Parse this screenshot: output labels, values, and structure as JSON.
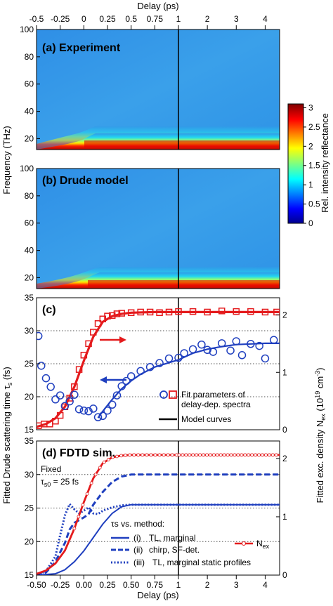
{
  "figure": {
    "top_xlabel": "Delay (ps)",
    "bottom_xlabel": "Delay (ps)",
    "freq_ylabel": "Frequency (THz)",
    "left_ylabel": "Fitted Drude scattering time τ",
    "left_ylabel_sub": "s",
    "left_ylabel_unit": " (fs)",
    "right_ylabel_pre": "Fitted exc. density N",
    "right_ylabel_sub": "ex",
    "right_ylabel_unit": " (10",
    "right_ylabel_exp": "19",
    "right_ylabel_end": " cm",
    "right_ylabel_exp2": "-3",
    "right_ylabel_close": ")",
    "colorbar_label": "Rel. intensity reflectance",
    "colors": {
      "red": "#e41a1c",
      "blue": "#1f3fbf",
      "line": "#000000"
    }
  },
  "chart_data": [
    {
      "type": "heatmap",
      "panel_label": "(a) Experiment",
      "xlabel": "Delay (ps)",
      "ylabel": "Frequency (THz)",
      "xticks": [
        "-0.5",
        "-0.25",
        "0",
        "0.25",
        "0.5",
        "0.75",
        "1",
        "2",
        "3",
        "4"
      ],
      "yticks": [
        "20",
        "40",
        "60",
        "80",
        "100"
      ],
      "ylim": [
        12,
        100
      ],
      "colorbar": {
        "label": "Rel. intensity reflectance",
        "ticks": [
          "0",
          "0.5",
          "1",
          "1.5",
          "2",
          "2.5",
          "3"
        ],
        "range": [
          0,
          3.1
        ]
      }
    },
    {
      "type": "heatmap",
      "panel_label": "(b) Drude model",
      "xlabel": "Delay (ps)",
      "ylabel": "Frequency (THz)",
      "yticks": [
        "20",
        "40",
        "60",
        "80",
        "100"
      ],
      "ylim": [
        12,
        100
      ]
    },
    {
      "type": "scatter",
      "panel_label": "(c)",
      "left_yticks": [
        "15",
        "20",
        "25",
        "30",
        "35"
      ],
      "left_ylim": [
        15,
        35
      ],
      "right_yticks": [
        "0",
        "1",
        "2"
      ],
      "right_ylim": [
        0,
        2.3
      ],
      "legend": [
        "Fit parameters of",
        "delay-dep. spectra",
        "Model curves"
      ],
      "series": [
        {
          "name": "N_ex fit",
          "axis": "right",
          "x": [
            -0.48,
            -0.42,
            -0.36,
            -0.3,
            -0.25,
            -0.2,
            -0.15,
            -0.1,
            -0.05,
            0,
            0.05,
            0.1,
            0.15,
            0.2,
            0.25,
            0.3,
            0.35,
            0.4,
            0.5,
            0.6,
            0.7,
            0.8,
            0.9,
            1.0,
            1.5,
            2.0,
            2.5,
            3.0,
            3.5,
            4.0,
            4.4
          ],
          "values": [
            0.07,
            0.1,
            0.1,
            0.15,
            0.25,
            0.4,
            0.55,
            0.75,
            1.05,
            1.3,
            1.5,
            1.7,
            1.85,
            1.93,
            1.98,
            1.99,
            2.02,
            2.03,
            2.04,
            2.05,
            2.05,
            2.04,
            2.05,
            2.06,
            2.06,
            2.05,
            2.07,
            2.06,
            2.06,
            2.05,
            2.05
          ]
        },
        {
          "name": "tau_s fit",
          "axis": "left",
          "x": [
            -0.48,
            -0.45,
            -0.4,
            -0.35,
            -0.3,
            -0.25,
            -0.2,
            -0.15,
            -0.1,
            -0.05,
            0,
            0.05,
            0.1,
            0.15,
            0.2,
            0.25,
            0.3,
            0.35,
            0.4,
            0.45,
            0.5,
            0.6,
            0.7,
            0.8,
            0.9,
            1.0,
            1.2,
            1.5,
            1.8,
            2.0,
            2.2,
            2.5,
            2.8,
            3.0,
            3.2,
            3.5,
            3.8,
            4.0,
            4.3
          ],
          "values": [
            29.2,
            24.7,
            22.8,
            21.5,
            19.6,
            20.2,
            18.6,
            19.3,
            20.3,
            18.1,
            17.9,
            17.8,
            18.2,
            16.9,
            17.1,
            17.9,
            18.8,
            20.2,
            21.6,
            22.4,
            23.1,
            23.9,
            24.5,
            25.1,
            25.8,
            25.9,
            26.6,
            27.2,
            27.9,
            27.1,
            26.8,
            28.1,
            27.0,
            28.4,
            26.3,
            28.0,
            27.7,
            25.8,
            28.6
          ]
        },
        {
          "name": "N_ex model",
          "axis": "right",
          "x": [
            -0.5,
            -0.4,
            -0.3,
            -0.2,
            -0.1,
            0,
            0.1,
            0.2,
            0.3,
            0.4,
            0.5,
            0.75,
            1,
            2,
            3,
            4,
            4.5
          ],
          "values": [
            0.05,
            0.1,
            0.2,
            0.4,
            0.75,
            1.2,
            1.62,
            1.88,
            1.98,
            2.02,
            2.04,
            2.05,
            2.05,
            2.05,
            2.05,
            2.05,
            2.05
          ]
        },
        {
          "name": "tau_s model",
          "axis": "left",
          "x": [
            0.15,
            0.2,
            0.3,
            0.4,
            0.5,
            0.6,
            0.75,
            1.0,
            1.5,
            2.0,
            2.5,
            3.0,
            3.5,
            4.0,
            4.5
          ],
          "values": [
            16.8,
            17.8,
            19.6,
            21.2,
            22.4,
            23.4,
            24.5,
            25.6,
            26.6,
            27.2,
            27.6,
            27.9,
            28.0,
            28.1,
            28.1
          ]
        }
      ]
    },
    {
      "type": "line",
      "panel_label": "(d) FDTD sim.",
      "note": [
        "Fixed",
        "τ",
        "s0",
        " = 25 fs"
      ],
      "xlabel": "Delay (ps)",
      "xticks": [
        "-0.50",
        "-0.25",
        "0.00",
        "0.25",
        "0.50",
        "0.75",
        "1",
        "2",
        "3",
        "4"
      ],
      "left_yticks": [
        "15",
        "20",
        "25",
        "30",
        "35"
      ],
      "left_ylim": [
        15,
        35
      ],
      "right_yticks": [
        "0",
        "1",
        "2"
      ],
      "right_ylim": [
        0,
        2.3
      ],
      "legend_title": "τs vs. method:",
      "legend": [
        {
          "tag": "(i)",
          "text": "TL, marginal"
        },
        {
          "tag": "",
          "text": "chirp, SF-det."
        },
        {
          "tag": "(ii)",
          "text": ""
        },
        {
          "tag": "(iii)",
          "text": "TL, marginal static profiles"
        },
        {
          "tag": "",
          "text": "N",
          "sub": "ex"
        }
      ],
      "series": [
        {
          "name": "(i) TL, marginal",
          "x": [
            -0.5,
            -0.3,
            -0.2,
            -0.1,
            0,
            0.1,
            0.2,
            0.3,
            0.4,
            0.5,
            0.75,
            1,
            2,
            3,
            4,
            4.5
          ],
          "values": [
            15,
            15.2,
            15.8,
            17,
            18.6,
            20.6,
            22.6,
            24.2,
            25.2,
            25.5,
            25.5,
            25.5,
            25.5,
            25.5,
            25.5,
            25.5
          ]
        },
        {
          "name": "(ii) chirp, SF-det.",
          "x": [
            -0.5,
            -0.4,
            -0.3,
            -0.2,
            -0.15,
            -0.1,
            -0.05,
            0,
            0.05,
            0.1,
            0.2,
            0.3,
            0.4,
            0.5,
            0.75,
            1,
            2,
            3,
            4,
            4.5
          ],
          "values": [
            15,
            15.4,
            17,
            19.8,
            21.8,
            22.8,
            23.2,
            23.6,
            24.1,
            25.5,
            27.4,
            28.9,
            29.7,
            30,
            30,
            30,
            30,
            30,
            30,
            30
          ]
        },
        {
          "name": "(iii) TL, marginal static profiles",
          "x": [
            -0.5,
            -0.4,
            -0.3,
            -0.25,
            -0.2,
            -0.15,
            -0.1,
            -0.05,
            0,
            0.05,
            0.1,
            0.15,
            0.2,
            0.3,
            0.4,
            0.5,
            0.75,
            1,
            2,
            3,
            4,
            4.5
          ],
          "values": [
            15,
            15.6,
            17.8,
            21,
            23.9,
            25.6,
            24.8,
            24.2,
            24.6,
            25.1,
            24.2,
            24.1,
            24.6,
            25.1,
            25.4,
            25.5,
            25.5,
            25.5,
            25.5,
            25.5,
            25.5,
            25.5
          ]
        },
        {
          "name": "N_ex",
          "axis": "right",
          "x": [
            -0.5,
            -0.4,
            -0.3,
            -0.2,
            -0.1,
            0,
            0.1,
            0.2,
            0.3,
            0.4,
            0.5,
            0.75,
            1,
            2,
            3,
            4,
            4.5
          ],
          "values": [
            0.02,
            0.08,
            0.2,
            0.42,
            0.8,
            1.25,
            1.66,
            1.92,
            2.02,
            2.05,
            2.06,
            2.06,
            2.06,
            2.06,
            2.06,
            2.06,
            2.06
          ]
        }
      ]
    }
  ]
}
